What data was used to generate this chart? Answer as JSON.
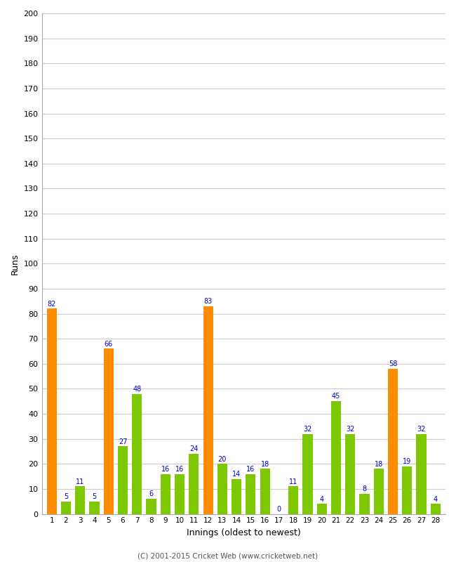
{
  "innings": [
    1,
    2,
    3,
    4,
    5,
    6,
    7,
    8,
    9,
    10,
    11,
    12,
    13,
    14,
    15,
    16,
    17,
    18,
    19,
    20,
    21,
    22,
    23,
    24,
    25,
    26,
    27,
    28
  ],
  "values": [
    82,
    5,
    11,
    5,
    66,
    27,
    48,
    6,
    16,
    16,
    24,
    83,
    20,
    14,
    16,
    18,
    0,
    11,
    32,
    4,
    45,
    32,
    8,
    18,
    58,
    19,
    32,
    4
  ],
  "colors": [
    "#ff8c00",
    "#7dc800",
    "#7dc800",
    "#7dc800",
    "#ff8c00",
    "#7dc800",
    "#7dc800",
    "#7dc800",
    "#7dc800",
    "#7dc800",
    "#7dc800",
    "#ff8c00",
    "#7dc800",
    "#7dc800",
    "#7dc800",
    "#7dc800",
    "#7dc800",
    "#7dc800",
    "#7dc800",
    "#7dc800",
    "#7dc800",
    "#7dc800",
    "#7dc800",
    "#7dc800",
    "#ff8c00",
    "#7dc800",
    "#7dc800",
    "#7dc800"
  ],
  "xlabel": "Innings (oldest to newest)",
  "ylabel": "Runs",
  "ylim": [
    0,
    200
  ],
  "yticks": [
    0,
    10,
    20,
    30,
    40,
    50,
    60,
    70,
    80,
    90,
    100,
    110,
    120,
    130,
    140,
    150,
    160,
    170,
    180,
    190,
    200
  ],
  "label_color": "#0000cc",
  "bg_color": "#ffffff",
  "plot_bg_color": "#ffffff",
  "grid_color": "#cccccc",
  "footer": "(C) 2001-2015 Cricket Web (www.cricketweb.net)",
  "figwidth": 6.5,
  "figheight": 8.0,
  "dpi": 100
}
